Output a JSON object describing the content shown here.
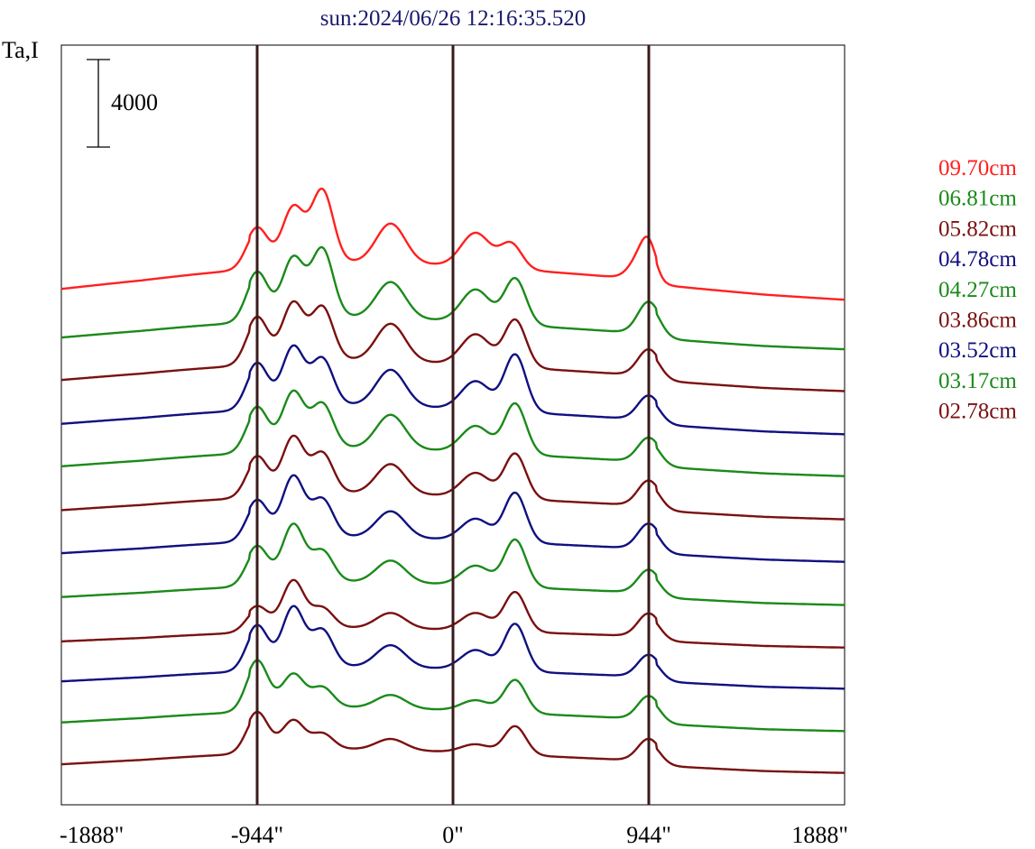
{
  "chart_data": {
    "type": "line",
    "title": "sun:2024/06/26 12:16:35.520",
    "ylabel": "Ta,I",
    "scale_bar_label": "4000",
    "xlim": [
      -1888,
      1888
    ],
    "x_ticks": [
      {
        "value": -1888,
        "label": "-1888\""
      },
      {
        "value": -944,
        "label": "-944\""
      },
      {
        "value": 0,
        "label": "0\""
      },
      {
        "value": 944,
        "label": "944\""
      },
      {
        "value": 1888,
        "label": "1888\""
      }
    ],
    "vertical_markers": [
      -944,
      0,
      944
    ],
    "grid": false,
    "legend_position": "right",
    "series": [
      {
        "name": "09.70cm",
        "color": "#ff2020",
        "baseline": 0,
        "peaks": [
          [
            -944,
            3,
            1700
          ],
          [
            -770,
            3,
            2550
          ],
          [
            -630,
            3,
            3300
          ],
          [
            -820,
            60,
            1000
          ],
          [
            -300,
            4,
            1800
          ],
          [
            110,
            4,
            1550
          ],
          [
            280,
            3,
            1150
          ],
          [
            910,
            3,
            1100
          ],
          [
            944,
            2,
            1000
          ],
          [
            -200,
            120,
            450
          ],
          [
            80,
            100,
            700
          ],
          [
            400,
            80,
            250
          ]
        ]
      },
      {
        "name": "06.81cm",
        "color": "#1a8a1a",
        "baseline": 0,
        "peaks": [
          [
            -944,
            3,
            2100
          ],
          [
            -770,
            3,
            2700
          ],
          [
            -630,
            3,
            3100
          ],
          [
            -300,
            4,
            1650
          ],
          [
            110,
            4,
            1500
          ],
          [
            300,
            3,
            2100
          ],
          [
            944,
            3,
            1450
          ],
          [
            -820,
            60,
            950
          ],
          [
            -200,
            120,
            300
          ],
          [
            80,
            100,
            500
          ]
        ]
      },
      {
        "name": "05.82cm",
        "color": "#7a1010",
        "baseline": 0,
        "peaks": [
          [
            -944,
            3,
            2000
          ],
          [
            -770,
            3,
            2600
          ],
          [
            -630,
            3,
            2400
          ],
          [
            -300,
            4,
            1700
          ],
          [
            110,
            4,
            1400
          ],
          [
            300,
            3,
            2150
          ],
          [
            944,
            3,
            1200
          ],
          [
            -820,
            60,
            900
          ],
          [
            -200,
            120,
            300
          ],
          [
            80,
            100,
            500
          ]
        ]
      },
      {
        "name": "04.78cm",
        "color": "#101080",
        "baseline": 0,
        "peaks": [
          [
            -944,
            3,
            1950
          ],
          [
            -770,
            3,
            2650
          ],
          [
            -630,
            3,
            2100
          ],
          [
            -300,
            4,
            1650
          ],
          [
            110,
            4,
            1300
          ],
          [
            300,
            3,
            2600
          ],
          [
            944,
            3,
            1100
          ],
          [
            -820,
            60,
            850
          ],
          [
            -200,
            120,
            250
          ],
          [
            80,
            100,
            450
          ]
        ]
      },
      {
        "name": "04.27cm",
        "color": "#1a8a1a",
        "baseline": 0,
        "peaks": [
          [
            -944,
            3,
            1900
          ],
          [
            -770,
            3,
            2550
          ],
          [
            -630,
            3,
            2000
          ],
          [
            -300,
            4,
            1550
          ],
          [
            110,
            4,
            1200
          ],
          [
            300,
            3,
            2300
          ],
          [
            944,
            3,
            1100
          ],
          [
            -820,
            60,
            800
          ],
          [
            -200,
            120,
            250
          ],
          [
            80,
            100,
            450
          ]
        ]
      },
      {
        "name": "03.86cm",
        "color": "#7a1010",
        "baseline": 0,
        "peaks": [
          [
            -944,
            3,
            1700
          ],
          [
            -770,
            3,
            2550
          ],
          [
            -630,
            3,
            1800
          ],
          [
            -300,
            4,
            1350
          ],
          [
            110,
            4,
            1100
          ],
          [
            300,
            3,
            2050
          ],
          [
            944,
            3,
            1150
          ],
          [
            -820,
            60,
            750
          ],
          [
            -200,
            120,
            200
          ],
          [
            80,
            100,
            400
          ]
        ]
      },
      {
        "name": "03.52cm",
        "color": "#101080",
        "baseline": 0,
        "peaks": [
          [
            -944,
            3,
            1700
          ],
          [
            -770,
            3,
            2750
          ],
          [
            -630,
            3,
            1700
          ],
          [
            -300,
            4,
            1200
          ],
          [
            110,
            4,
            1000
          ],
          [
            300,
            3,
            2250
          ],
          [
            944,
            3,
            1150
          ],
          [
            -820,
            60,
            700
          ],
          [
            -200,
            120,
            200
          ],
          [
            80,
            100,
            350
          ]
        ]
      },
      {
        "name": "03.17cm",
        "color": "#1a8a1a",
        "baseline": 0,
        "peaks": [
          [
            -944,
            3,
            1650
          ],
          [
            -770,
            3,
            2600
          ],
          [
            -630,
            3,
            1400
          ],
          [
            -300,
            4,
            1000
          ],
          [
            110,
            4,
            900
          ],
          [
            300,
            3,
            2150
          ],
          [
            944,
            3,
            1050
          ],
          [
            -820,
            60,
            650
          ],
          [
            -200,
            120,
            150
          ],
          [
            80,
            100,
            300
          ]
        ]
      },
      {
        "name": "02.78cm",
        "color": "#7a1010",
        "baseline": 0,
        "peaks": [
          [
            -944,
            3,
            1000
          ],
          [
            -770,
            3,
            2150
          ],
          [
            -630,
            3,
            900
          ],
          [
            -300,
            4,
            700
          ],
          [
            110,
            4,
            800
          ],
          [
            300,
            3,
            1800
          ],
          [
            944,
            3,
            1050
          ],
          [
            -820,
            60,
            500
          ],
          [
            -200,
            120,
            150
          ],
          [
            80,
            100,
            250
          ]
        ]
      }
    ],
    "unlabeled_series": [
      {
        "color": "#101080",
        "peaks": [
          [
            -944,
            3,
            1900
          ],
          [
            -770,
            3,
            2700
          ],
          [
            -630,
            3,
            1650
          ],
          [
            -300,
            4,
            1000
          ],
          [
            110,
            4,
            900
          ],
          [
            300,
            3,
            2150
          ],
          [
            944,
            3,
            1000
          ],
          [
            -820,
            60,
            600
          ],
          [
            -200,
            120,
            150
          ],
          [
            80,
            100,
            300
          ]
        ]
      },
      {
        "color": "#1a8a1a",
        "peaks": [
          [
            -944,
            3,
            2150
          ],
          [
            -770,
            3,
            1500
          ],
          [
            -630,
            3,
            900
          ],
          [
            -300,
            4,
            600
          ],
          [
            110,
            4,
            500
          ],
          [
            300,
            3,
            1500
          ],
          [
            944,
            3,
            1050
          ],
          [
            -820,
            60,
            700
          ],
          [
            -200,
            120,
            150
          ],
          [
            80,
            100,
            250
          ]
        ]
      },
      {
        "color": "#7a1010",
        "peaks": [
          [
            -944,
            3,
            1700
          ],
          [
            -770,
            3,
            1300
          ],
          [
            -630,
            3,
            700
          ],
          [
            -300,
            4,
            500
          ],
          [
            110,
            4,
            400
          ],
          [
            300,
            3,
            1300
          ],
          [
            944,
            3,
            1000
          ],
          [
            -820,
            60,
            700
          ],
          [
            -200,
            120,
            150
          ],
          [
            80,
            100,
            250
          ]
        ]
      }
    ]
  }
}
